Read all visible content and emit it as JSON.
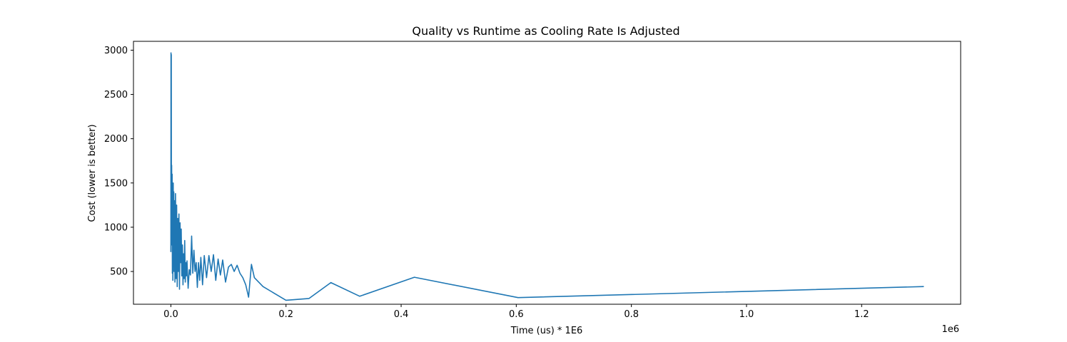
{
  "chart_data": {
    "type": "line",
    "title": "Quality vs Runtime as Cooling Rate Is Adjusted",
    "xlabel": "Time (us) * 1E6",
    "ylabel": "Cost (lower is better)",
    "x_offset_label": "1e6",
    "xlim": [
      -65000,
      1372000
    ],
    "ylim": [
      130,
      3100
    ],
    "xticks": [
      0.0,
      0.2,
      0.4,
      0.6,
      0.8,
      1.0,
      1.2
    ],
    "xtick_labels": [
      "0.0",
      "0.2",
      "0.4",
      "0.6",
      "0.8",
      "1.0",
      "1.2"
    ],
    "yticks": [
      500,
      1000,
      1500,
      2000,
      2500,
      3000
    ],
    "ytick_labels": [
      "500",
      "1000",
      "1500",
      "2000",
      "2500",
      "3000"
    ],
    "grid": false,
    "color": "#1f77b4",
    "series": [
      {
        "x": [
          0,
          200,
          400,
          700,
          1000,
          1300,
          1800,
          2200,
          2600,
          3000,
          3500,
          4000,
          4500,
          5000,
          5500,
          6000,
          7000,
          8000,
          9000,
          10000,
          11000,
          12000,
          13000,
          14000,
          15000,
          16000,
          17000,
          18000,
          19000,
          20000,
          21000,
          22000,
          23000,
          24000,
          25000,
          26000,
          27000,
          28000,
          30000,
          32000,
          34000,
          36000,
          38000,
          40000,
          42000,
          44000,
          46000,
          48000,
          50000,
          52000,
          55000,
          58000,
          62000,
          66000,
          70000,
          74000,
          78000,
          82000,
          86000,
          90000,
          95000,
          100000,
          105000,
          110000,
          115000,
          120000,
          125000,
          130000,
          135000,
          140000,
          145000,
          160000,
          200000,
          240000,
          278000,
          328000,
          423000,
          603000,
          1308000
        ],
        "y": [
          720,
          2970,
          1500,
          2950,
          800,
          1700,
          1050,
          1600,
          480,
          1350,
          400,
          1500,
          600,
          1400,
          500,
          1300,
          380,
          1380,
          420,
          1250,
          330,
          1100,
          500,
          1150,
          300,
          1050,
          600,
          980,
          450,
          800,
          350,
          700,
          420,
          850,
          380,
          600,
          450,
          620,
          310,
          520,
          460,
          900,
          480,
          740,
          500,
          600,
          320,
          600,
          400,
          660,
          350,
          680,
          430,
          680,
          500,
          690,
          400,
          640,
          460,
          630,
          380,
          550,
          580,
          500,
          570,
          480,
          430,
          350,
          210,
          580,
          430,
          330,
          175,
          195,
          375,
          220,
          435,
          205,
          330
        ]
      }
    ]
  }
}
